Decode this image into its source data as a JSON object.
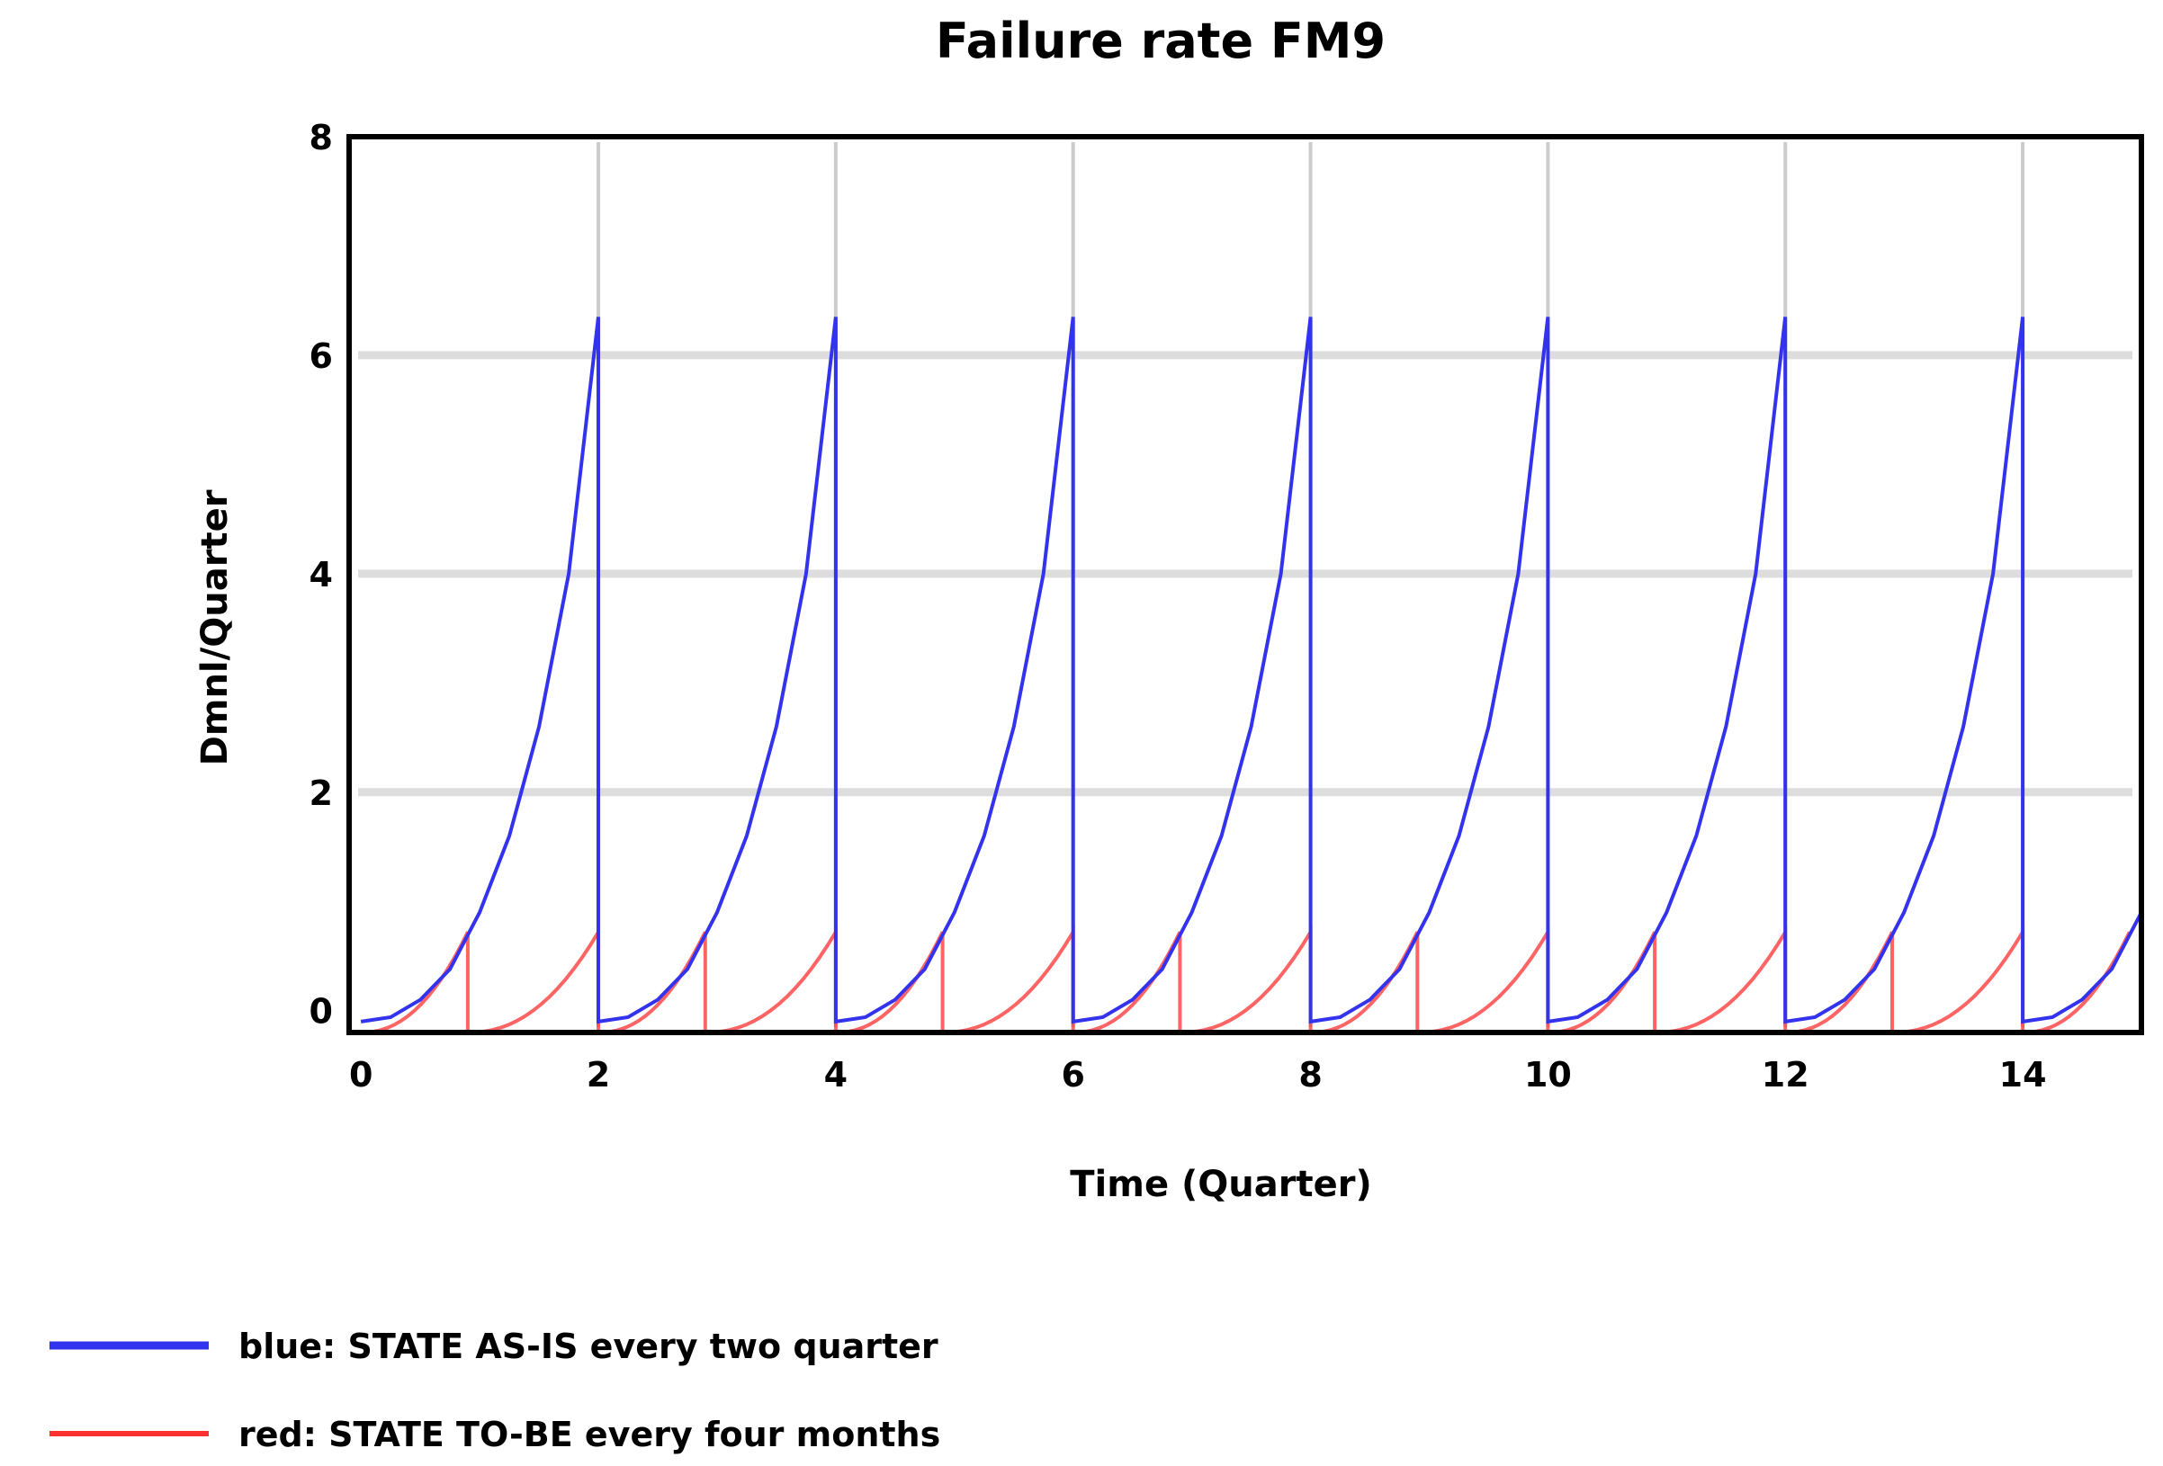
{
  "chart_data": {
    "type": "line",
    "title": "Failure rate FM9",
    "xlabel": "Time (Quarter)",
    "ylabel": "Dmnl/Quarter",
    "xlim": [
      -0.1,
      15
    ],
    "ylim": [
      -0.2,
      8
    ],
    "x_ticks": [
      "0",
      "2",
      "4",
      "6",
      "8",
      "10",
      "12",
      "14"
    ],
    "y_ticks": [
      "0",
      "2",
      "4",
      "6",
      "8"
    ],
    "grid": true,
    "legend_position": "bottom-left",
    "series": [
      {
        "name": "blue: STATE AS-IS every two quarter",
        "color": "#3333ee",
        "period": 2,
        "peak": 6.35,
        "min": -0.1,
        "points": [
          [
            0,
            -0.1
          ],
          [
            0.25,
            -0.06
          ],
          [
            0.5,
            0.1
          ],
          [
            0.75,
            0.38
          ],
          [
            1.0,
            0.9
          ],
          [
            1.25,
            1.6
          ],
          [
            1.5,
            2.6
          ],
          [
            1.75,
            4.0
          ],
          [
            2.0,
            6.35
          ]
        ]
      },
      {
        "name": "red: STATE TO-BE every four months",
        "color": "#ff3030",
        "period": 0.9,
        "peak": 0.72,
        "min": -0.2,
        "resets": [
          0.9,
          2,
          2.9,
          4,
          4.9,
          6,
          6.9,
          8,
          8.9,
          10,
          10.9,
          12,
          12.9,
          14
        ]
      }
    ]
  }
}
